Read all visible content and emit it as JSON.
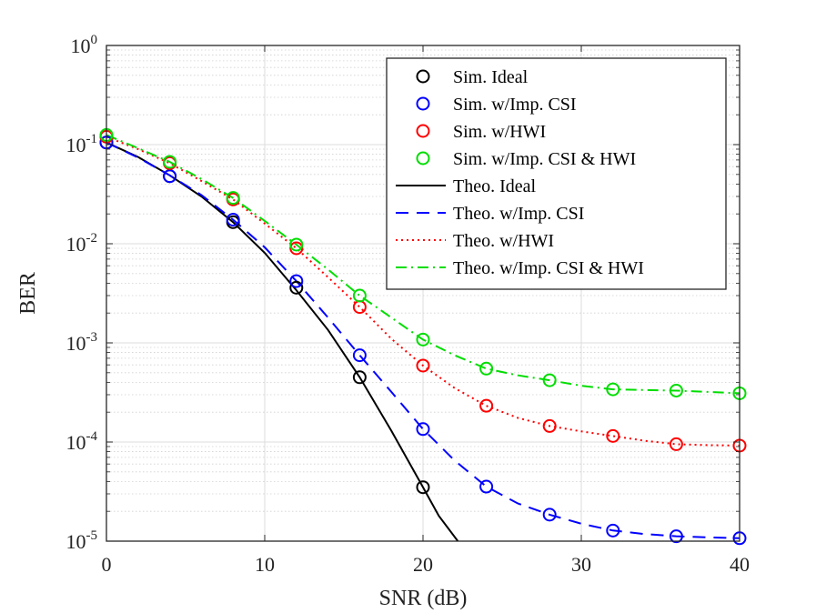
{
  "chart_data": {
    "type": "line",
    "xlabel": "SNR (dB)",
    "ylabel": "BER",
    "xlim": [
      0,
      40
    ],
    "ylim_exponent": [
      -5,
      0
    ],
    "yscale": "log",
    "grid": true,
    "minor_grid": true,
    "legend_position": "top-right",
    "x_ticks": [
      0,
      10,
      20,
      30,
      40
    ],
    "y_ticks": [
      {
        "base": "10",
        "exp": "0"
      },
      {
        "base": "10",
        "exp": "-1"
      },
      {
        "base": "10",
        "exp": "-2"
      },
      {
        "base": "10",
        "exp": "-3"
      },
      {
        "base": "10",
        "exp": "-4"
      },
      {
        "base": "10",
        "exp": "-5"
      }
    ],
    "series": [
      {
        "name": "Sim. Ideal",
        "kind": "markers",
        "marker": "circle",
        "color": "#000000",
        "x": [
          0,
          4,
          8,
          12,
          16,
          20
        ],
        "y": [
          0.105,
          0.048,
          0.0165,
          0.0036,
          0.00045,
          3.5e-05
        ]
      },
      {
        "name": "Sim. w/Imp. CSI",
        "kind": "markers",
        "marker": "circle",
        "color": "#0000ff",
        "x": [
          0,
          4,
          8,
          12,
          16,
          20,
          24,
          28,
          32,
          36,
          40
        ],
        "y": [
          0.105,
          0.048,
          0.0175,
          0.0042,
          0.00075,
          0.000135,
          3.55e-05,
          1.85e-05,
          1.28e-05,
          1.12e-05,
          1.07e-05
        ]
      },
      {
        "name": "Sim. w/HWI",
        "kind": "markers",
        "marker": "circle",
        "color": "#ff0000",
        "x": [
          0,
          4,
          8,
          12,
          16,
          20,
          24,
          28,
          32,
          36,
          40
        ],
        "y": [
          0.12,
          0.065,
          0.028,
          0.009,
          0.0023,
          0.00059,
          0.000232,
          0.000145,
          0.000115,
          9.5e-05,
          9.2e-05
        ]
      },
      {
        "name": "Sim. w/Imp. CSI & HWI",
        "kind": "markers",
        "marker": "circle",
        "color": "#00dd00",
        "x": [
          0,
          4,
          8,
          12,
          16,
          20,
          24,
          28,
          32,
          36,
          40
        ],
        "y": [
          0.125,
          0.067,
          0.029,
          0.0098,
          0.003,
          0.00108,
          0.00055,
          0.00042,
          0.00034,
          0.00033,
          0.00031
        ]
      },
      {
        "name": "Theo. Ideal",
        "kind": "line",
        "dash": "solid",
        "color": "#000000",
        "x": [
          0,
          2,
          4,
          6,
          8,
          10,
          12,
          14,
          16,
          18,
          20,
          21,
          22.2
        ],
        "y": [
          0.105,
          0.075,
          0.049,
          0.03,
          0.0165,
          0.0081,
          0.0034,
          0.00135,
          0.00045,
          0.00013,
          3.5e-05,
          1.8e-05,
          1e-05
        ]
      },
      {
        "name": "Theo. w/Imp. CSI",
        "kind": "line",
        "dash": "dashed",
        "color": "#0000ff",
        "x": [
          0,
          2,
          4,
          6,
          8,
          10,
          12,
          14,
          16,
          18,
          20,
          22,
          24,
          26,
          28,
          30,
          32,
          34,
          36,
          38,
          40
        ],
        "y": [
          0.105,
          0.074,
          0.049,
          0.031,
          0.0175,
          0.0092,
          0.0042,
          0.0018,
          0.00075,
          0.00032,
          0.000135,
          6.5e-05,
          3.55e-05,
          2.4e-05,
          1.85e-05,
          1.5e-05,
          1.28e-05,
          1.18e-05,
          1.12e-05,
          1.09e-05,
          1.07e-05
        ]
      },
      {
        "name": "Theo. w/HWI",
        "kind": "line",
        "dash": "dotted",
        "color": "#ff0000",
        "x": [
          0,
          2,
          4,
          6,
          8,
          10,
          12,
          14,
          16,
          18,
          20,
          22,
          24,
          26,
          28,
          30,
          32,
          34,
          36,
          38,
          40
        ],
        "y": [
          0.12,
          0.09,
          0.065,
          0.043,
          0.028,
          0.016,
          0.009,
          0.0046,
          0.0023,
          0.0011,
          0.00059,
          0.00035,
          0.000232,
          0.000175,
          0.000145,
          0.000128,
          0.000115,
          0.000103,
          9.5e-05,
          9.3e-05,
          9.2e-05
        ]
      },
      {
        "name": "Theo. w/Imp. CSI & HWI",
        "kind": "line",
        "dash": "dashdot",
        "color": "#00dd00",
        "x": [
          0,
          2,
          4,
          6,
          8,
          10,
          12,
          14,
          16,
          18,
          20,
          22,
          24,
          26,
          28,
          30,
          32,
          34,
          36,
          38,
          40
        ],
        "y": [
          0.125,
          0.092,
          0.067,
          0.045,
          0.029,
          0.017,
          0.0098,
          0.0055,
          0.003,
          0.0018,
          0.00108,
          0.00075,
          0.00055,
          0.00047,
          0.00042,
          0.00037,
          0.00034,
          0.000335,
          0.00033,
          0.00032,
          0.00031
        ]
      }
    ]
  }
}
